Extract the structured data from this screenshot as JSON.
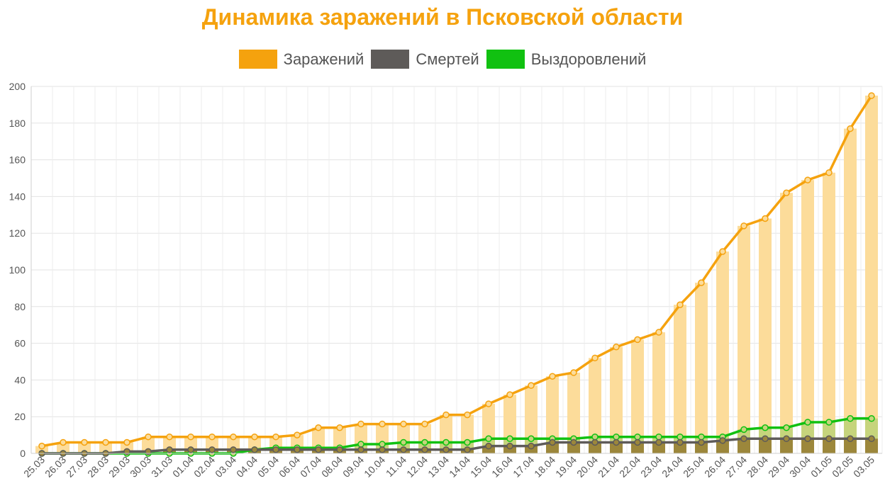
{
  "chart_data": {
    "type": "bar+line",
    "title": "Динамика заражений в Псковской области",
    "categories": [
      "25.03",
      "26.03",
      "27.03",
      "28.03",
      "29.03",
      "30.03",
      "31.03",
      "01.04",
      "02.04",
      "03.04",
      "04.04",
      "05.04",
      "06.04",
      "07.04",
      "08.04",
      "09.04",
      "10.04",
      "11.04",
      "12.04",
      "13.04",
      "14.04",
      "15.04",
      "16.04",
      "17.04",
      "18.04",
      "19.04",
      "20.04",
      "21.04",
      "22.04",
      "23.04",
      "24.04",
      "25.04",
      "26.04",
      "27.04",
      "28.04",
      "29.04",
      "30.04",
      "01.05",
      "02.05",
      "03.05"
    ],
    "series": [
      {
        "name": "Заражений",
        "color": "#f5a20e",
        "bar_color": "#fcdc9a",
        "values": [
          4,
          6,
          6,
          6,
          6,
          9,
          9,
          9,
          9,
          9,
          9,
          9,
          10,
          14,
          14,
          16,
          16,
          16,
          16,
          21,
          21,
          27,
          32,
          37,
          42,
          44,
          52,
          58,
          62,
          66,
          81,
          93,
          110,
          124,
          128,
          142,
          149,
          153,
          177,
          195
        ]
      },
      {
        "name": "Смертей",
        "color": "#5e5b59",
        "bar_color": "#9c873b",
        "values": [
          0,
          0,
          0,
          0,
          1,
          1,
          2,
          2,
          2,
          2,
          2,
          2,
          2,
          2,
          2,
          2,
          2,
          2,
          2,
          2,
          2,
          4,
          4,
          4,
          6,
          6,
          6,
          6,
          6,
          6,
          6,
          6,
          7,
          8,
          8,
          8,
          8,
          8,
          8,
          8
        ]
      },
      {
        "name": "Выздоровлений",
        "color": "#11c111",
        "bar_color": "#c6d47c",
        "values": [
          0,
          0,
          0,
          0,
          0,
          0,
          0,
          0,
          0,
          0,
          2,
          3,
          3,
          3,
          3,
          5,
          5,
          6,
          6,
          6,
          6,
          8,
          8,
          8,
          8,
          8,
          9,
          9,
          9,
          9,
          9,
          9,
          9,
          13,
          14,
          14,
          17,
          17,
          19,
          19
        ]
      }
    ],
    "yticks": [
      "0",
      "20",
      "40",
      "60",
      "80",
      "100",
      "120",
      "140",
      "160",
      "180",
      "200"
    ],
    "ylim": [
      0,
      200
    ],
    "grid": true,
    "legend": "top-center"
  }
}
